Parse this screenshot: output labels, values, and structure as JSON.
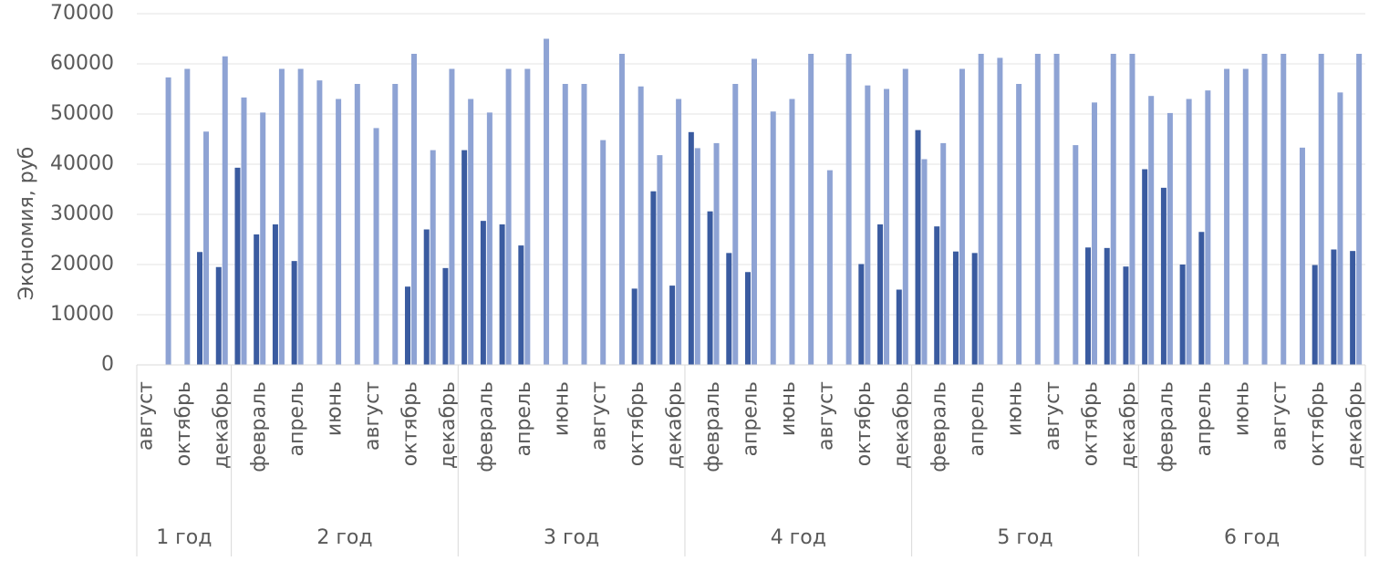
{
  "chart_data": {
    "type": "bar",
    "y_label": "Экономия, руб",
    "groups": [
      {
        "label": "1 год",
        "categories": [
          "август",
          null,
          "октябрь",
          null,
          "декабрь"
        ]
      },
      {
        "label": "2 год",
        "categories": [
          null,
          "февраль",
          null,
          "апрель",
          null,
          "июнь",
          null,
          "август",
          null,
          "октябрь",
          null,
          "декабрь"
        ]
      },
      {
        "label": "3 год",
        "categories": [
          null,
          "февраль",
          null,
          "апрель",
          null,
          "июнь",
          null,
          "август",
          null,
          "октябрь",
          null,
          "декабрь"
        ]
      },
      {
        "label": "4 год",
        "categories": [
          null,
          "февраль",
          null,
          "апрель",
          null,
          "июнь",
          null,
          "август",
          null,
          "октябрь",
          null,
          "декабрь"
        ]
      },
      {
        "label": "5 год",
        "categories": [
          null,
          "февраль",
          null,
          "апрель",
          null,
          "июнь",
          null,
          "август",
          null,
          "октябрь",
          null,
          "декабрь"
        ]
      },
      {
        "label": "6 год",
        "categories": [
          null,
          "февраль",
          null,
          "апрель",
          null,
          "июнь",
          null,
          "август",
          null,
          "октябрь",
          null,
          "декабрь"
        ]
      }
    ],
    "series": [
      {
        "color": "#3a5ba0",
        "values": [
          null,
          null,
          null,
          22500,
          19500,
          39300,
          26000,
          28000,
          20700,
          null,
          null,
          null,
          null,
          null,
          15600,
          27000,
          19300,
          42800,
          28700,
          28000,
          23800,
          null,
          null,
          null,
          null,
          null,
          15200,
          34600,
          15800,
          46400,
          30600,
          22300,
          18500,
          null,
          null,
          null,
          null,
          null,
          20100,
          28000,
          15000,
          46800,
          27600,
          22600,
          22300,
          null,
          null,
          null,
          null,
          null,
          23400,
          23300,
          19600,
          39000,
          35300,
          20000,
          26500,
          null,
          null,
          null,
          null,
          null,
          19900,
          23000,
          22700
        ]
      },
      {
        "color": "#8ea3d4",
        "values": [
          null,
          57300,
          59000,
          46500,
          61500,
          53300,
          50300,
          59000,
          59000,
          56700,
          53000,
          56000,
          47200,
          56000,
          62000,
          42800,
          59000,
          53000,
          50300,
          59000,
          59000,
          65000,
          56000,
          56000,
          44800,
          62000,
          55500,
          41800,
          53000,
          43200,
          44200,
          56000,
          61000,
          50500,
          53000,
          62000,
          38800,
          62000,
          55700,
          55000,
          59000,
          41000,
          44200,
          59000,
          62000,
          61200,
          56000,
          62000,
          62000,
          43800,
          52300,
          62000,
          62000,
          53600,
          50200,
          53000,
          54700,
          59000,
          59000,
          62000,
          62000,
          43300,
          62000,
          54300,
          62000
        ]
      }
    ],
    "ylim": [
      0,
      70000
    ],
    "yticks": [
      0,
      10000,
      20000,
      30000,
      40000,
      50000,
      60000,
      70000
    ],
    "grid": true
  }
}
